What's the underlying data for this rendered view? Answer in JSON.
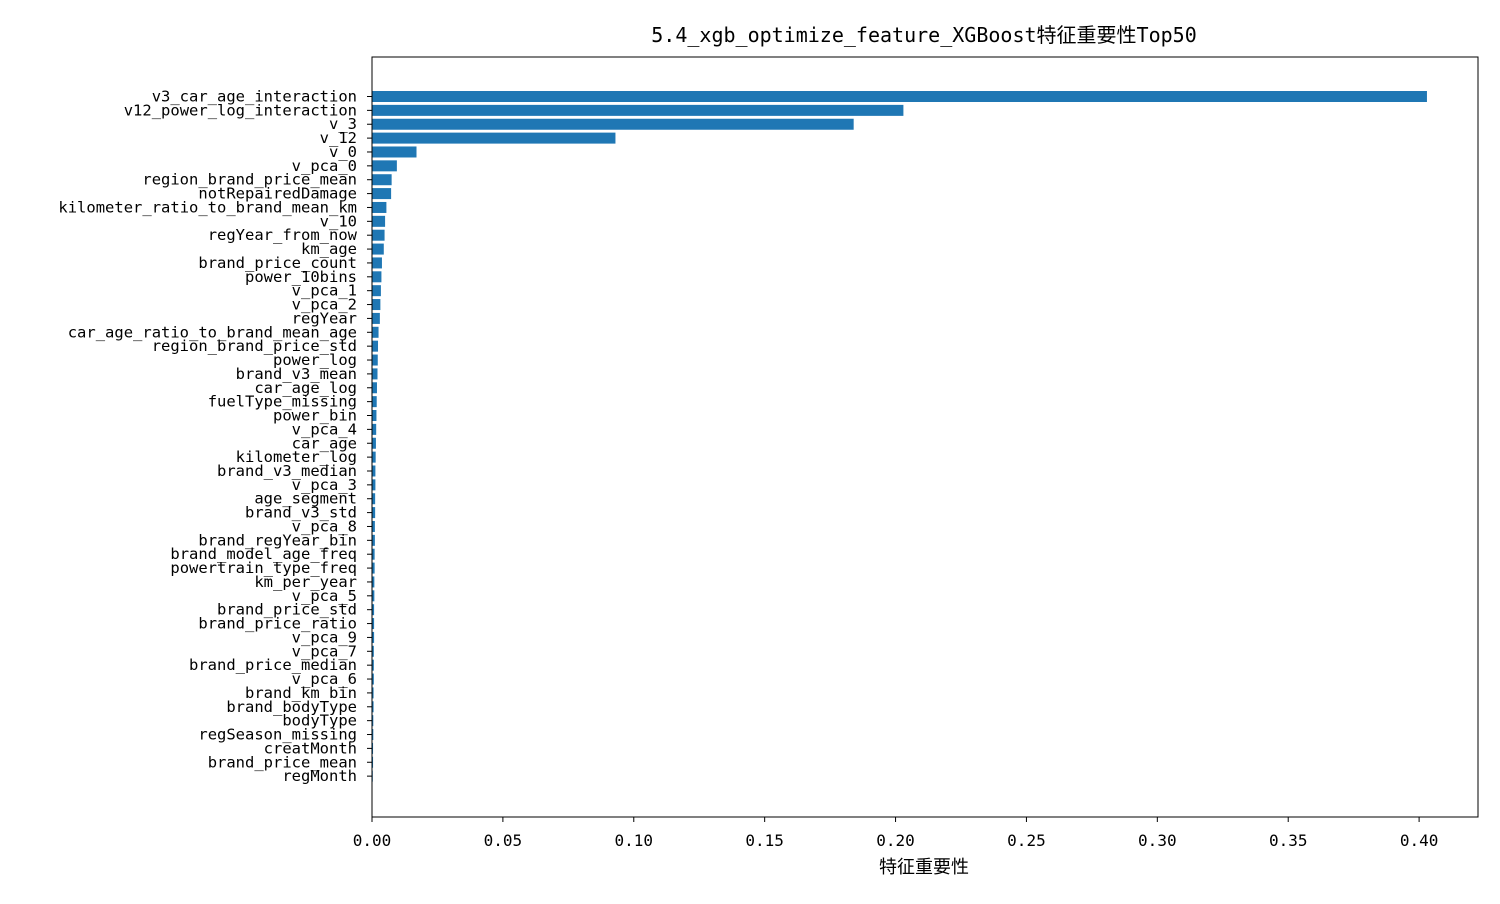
{
  "chart_data": {
    "type": "bar",
    "orientation": "horizontal",
    "title": "5.4_xgb_optimize_feature_XGBoost特征重要性Top50",
    "xlabel": "特征重要性",
    "ylabel": "",
    "xlim": [
      0,
      0.4225
    ],
    "xticks": [
      "0.00",
      "0.05",
      "0.10",
      "0.15",
      "0.20",
      "0.25",
      "0.30",
      "0.35",
      "0.40"
    ],
    "bar_color": "#1f77b4",
    "grid": false,
    "categories": [
      "v3_car_age_interaction",
      "v12_power_log_interaction",
      "v_3",
      "v_12",
      "v_0",
      "v_pca_0",
      "region_brand_price_mean",
      "notRepairedDamage",
      "kilometer_ratio_to_brand_mean_km",
      "v_10",
      "regYear_from_now",
      "km_age",
      "brand_price_count",
      "power_10bins",
      "v_pca_1",
      "v_pca_2",
      "regYear",
      "car_age_ratio_to_brand_mean_age",
      "region_brand_price_std",
      "power_log",
      "brand_v3_mean",
      "car_age_log",
      "fuelType_missing",
      "power_bin",
      "v_pca_4",
      "car_age",
      "kilometer_log",
      "brand_v3_median",
      "v_pca_3",
      "age_segment",
      "brand_v3_std",
      "v_pca_8",
      "brand_regYear_bin",
      "brand_model_age_freq",
      "powertrain_type_freq",
      "km_per_year",
      "v_pca_5",
      "brand_price_std",
      "brand_price_ratio",
      "v_pca_9",
      "v_pca_7",
      "brand_price_median",
      "v_pca_6",
      "brand_km_bin",
      "brand_bodyType",
      "bodyType",
      "regSeason_missing",
      "creatMonth",
      "brand_price_mean",
      "regMonth"
    ],
    "values": [
      0.403,
      0.203,
      0.184,
      0.093,
      0.017,
      0.0095,
      0.0075,
      0.0073,
      0.0055,
      0.005,
      0.0048,
      0.0045,
      0.0038,
      0.0036,
      0.0034,
      0.0032,
      0.003,
      0.0025,
      0.0023,
      0.0022,
      0.0021,
      0.0019,
      0.0018,
      0.0017,
      0.0016,
      0.0015,
      0.0014,
      0.0013,
      0.0013,
      0.0012,
      0.0012,
      0.0011,
      0.0011,
      0.001,
      0.001,
      0.0009,
      0.0009,
      0.0008,
      0.0008,
      0.0008,
      0.0007,
      0.0007,
      0.0007,
      0.0006,
      0.0006,
      0.0005,
      0.0005,
      0.0004,
      0.0004,
      0.0003
    ]
  }
}
